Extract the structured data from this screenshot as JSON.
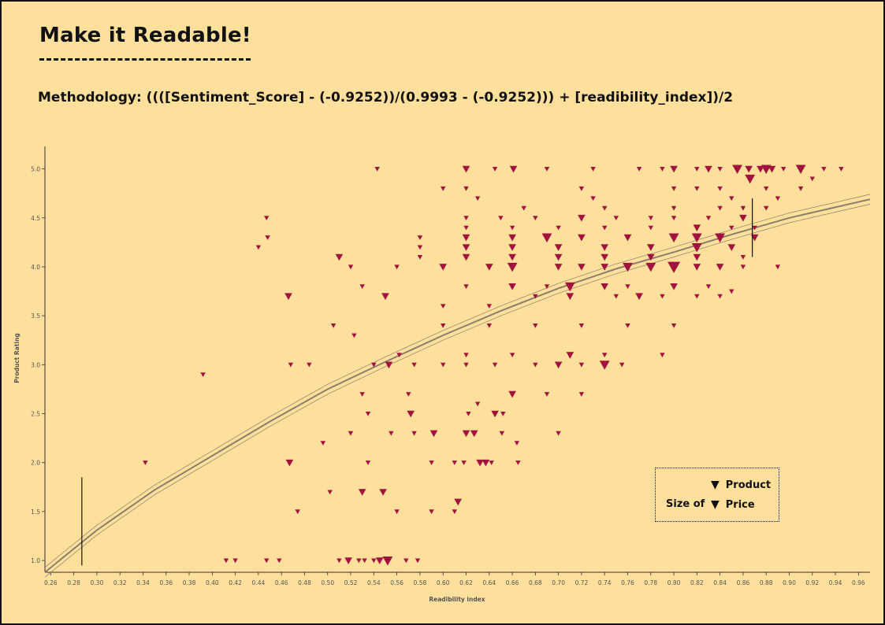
{
  "header": {
    "title": "Make it Readable!",
    "methodology": "Methodology: ((([Sentiment_Score] - (-0.9252))/(0.9993 - (-0.9252))) + [readibility_index])/2"
  },
  "legend": {
    "size_label": "Size of",
    "items": [
      "Product",
      "Price"
    ],
    "marker": "▼"
  },
  "colors": {
    "background": "#fedf9b",
    "marker": "#a3123e",
    "trend": "#8a7f6a"
  },
  "chart_data": {
    "type": "scatter",
    "xlabel": "Readibility index",
    "ylabel": "Product Rating",
    "xlim": [
      0.255,
      0.97
    ],
    "ylim": [
      0.88,
      5.23
    ],
    "xticks": [
      "0.26",
      "0.28",
      "0.30",
      "0.32",
      "0.34",
      "0.36",
      "0.38",
      "0.40",
      "0.42",
      "0.44",
      "0.46",
      "0.48",
      "0.50",
      "0.52",
      "0.54",
      "0.56",
      "0.58",
      "0.60",
      "0.62",
      "0.64",
      "0.66",
      "0.68",
      "0.70",
      "0.72",
      "0.74",
      "0.76",
      "0.78",
      "0.80",
      "0.82",
      "0.84",
      "0.86",
      "0.88",
      "0.90",
      "0.92",
      "0.94",
      "0.96"
    ],
    "yticks": [
      "1.0",
      "1.5",
      "2.0",
      "2.5",
      "3.0",
      "3.5",
      "4.0",
      "4.5",
      "5.0"
    ],
    "marker": "down-triangle",
    "trend": {
      "model": "logarithmic",
      "points": [
        [
          0.255,
          0.88
        ],
        [
          0.28,
          1.12
        ],
        [
          0.3,
          1.31
        ],
        [
          0.35,
          1.72
        ],
        [
          0.4,
          2.07
        ],
        [
          0.45,
          2.42
        ],
        [
          0.5,
          2.75
        ],
        [
          0.55,
          3.03
        ],
        [
          0.6,
          3.3
        ],
        [
          0.65,
          3.55
        ],
        [
          0.7,
          3.78
        ],
        [
          0.75,
          3.98
        ],
        [
          0.8,
          4.15
        ],
        [
          0.85,
          4.33
        ],
        [
          0.9,
          4.5
        ],
        [
          0.97,
          4.69
        ]
      ],
      "band_offset": 0.05
    },
    "reference_lines": [
      {
        "x": 0.287,
        "y_from": 0.95,
        "y_to": 1.85
      },
      {
        "x": 0.868,
        "y_from": 4.1,
        "y_to": 4.7
      }
    ],
    "points": [
      [
        0.412,
        1.0,
        1
      ],
      [
        0.42,
        1.0,
        1
      ],
      [
        0.447,
        1.0,
        1
      ],
      [
        0.458,
        1.0,
        1
      ],
      [
        0.51,
        1.0,
        1
      ],
      [
        0.518,
        1.0,
        2
      ],
      [
        0.527,
        1.0,
        1
      ],
      [
        0.532,
        1.0,
        1
      ],
      [
        0.54,
        1.0,
        1
      ],
      [
        0.545,
        1.0,
        2
      ],
      [
        0.552,
        1.0,
        3
      ],
      [
        0.568,
        1.0,
        1
      ],
      [
        0.578,
        1.0,
        1
      ],
      [
        0.342,
        2.0,
        1
      ],
      [
        0.467,
        2.0,
        2
      ],
      [
        0.53,
        1.7,
        2
      ],
      [
        0.548,
        1.7,
        2
      ],
      [
        0.56,
        1.5,
        1
      ],
      [
        0.502,
        1.7,
        1
      ],
      [
        0.474,
        1.5,
        1
      ],
      [
        0.61,
        1.5,
        1
      ],
      [
        0.613,
        1.6,
        2
      ],
      [
        0.59,
        1.5,
        1
      ],
      [
        0.496,
        2.2,
        1
      ],
      [
        0.535,
        2.0,
        1
      ],
      [
        0.59,
        2.0,
        1
      ],
      [
        0.61,
        2.0,
        1
      ],
      [
        0.618,
        2.0,
        1
      ],
      [
        0.632,
        2.0,
        2
      ],
      [
        0.637,
        2.0,
        2
      ],
      [
        0.642,
        2.0,
        1
      ],
      [
        0.665,
        2.0,
        1
      ],
      [
        0.52,
        2.3,
        1
      ],
      [
        0.555,
        2.3,
        1
      ],
      [
        0.575,
        2.3,
        1
      ],
      [
        0.592,
        2.3,
        2
      ],
      [
        0.62,
        2.3,
        2
      ],
      [
        0.627,
        2.3,
        2
      ],
      [
        0.651,
        2.3,
        1
      ],
      [
        0.664,
        2.2,
        1
      ],
      [
        0.7,
        2.3,
        1
      ],
      [
        0.535,
        2.5,
        1
      ],
      [
        0.572,
        2.5,
        2
      ],
      [
        0.622,
        2.5,
        1
      ],
      [
        0.645,
        2.5,
        2
      ],
      [
        0.652,
        2.5,
        1
      ],
      [
        0.53,
        2.7,
        1
      ],
      [
        0.57,
        2.7,
        1
      ],
      [
        0.63,
        2.6,
        1
      ],
      [
        0.66,
        2.7,
        2
      ],
      [
        0.69,
        2.7,
        1
      ],
      [
        0.72,
        2.7,
        1
      ],
      [
        0.392,
        2.9,
        1
      ],
      [
        0.468,
        3.0,
        1
      ],
      [
        0.484,
        3.0,
        1
      ],
      [
        0.54,
        3.0,
        1
      ],
      [
        0.553,
        3.0,
        2
      ],
      [
        0.575,
        3.0,
        1
      ],
      [
        0.6,
        3.0,
        1
      ],
      [
        0.62,
        3.0,
        1
      ],
      [
        0.645,
        3.0,
        1
      ],
      [
        0.68,
        3.0,
        1
      ],
      [
        0.7,
        3.0,
        2
      ],
      [
        0.72,
        3.0,
        1
      ],
      [
        0.74,
        3.0,
        3
      ],
      [
        0.755,
        3.0,
        1
      ],
      [
        0.562,
        3.1,
        1
      ],
      [
        0.62,
        3.1,
        1
      ],
      [
        0.66,
        3.1,
        1
      ],
      [
        0.71,
        3.1,
        2
      ],
      [
        0.74,
        3.1,
        1
      ],
      [
        0.79,
        3.1,
        1
      ],
      [
        0.466,
        3.7,
        2
      ],
      [
        0.505,
        3.4,
        1
      ],
      [
        0.523,
        3.3,
        1
      ],
      [
        0.6,
        3.4,
        1
      ],
      [
        0.64,
        3.4,
        1
      ],
      [
        0.68,
        3.4,
        1
      ],
      [
        0.72,
        3.4,
        1
      ],
      [
        0.76,
        3.4,
        1
      ],
      [
        0.8,
        3.4,
        1
      ],
      [
        0.55,
        3.7,
        2
      ],
      [
        0.6,
        3.6,
        1
      ],
      [
        0.64,
        3.6,
        1
      ],
      [
        0.68,
        3.7,
        1
      ],
      [
        0.71,
        3.7,
        2
      ],
      [
        0.75,
        3.7,
        1
      ],
      [
        0.77,
        3.7,
        2
      ],
      [
        0.79,
        3.7,
        1
      ],
      [
        0.82,
        3.7,
        1
      ],
      [
        0.84,
        3.7,
        1
      ],
      [
        0.53,
        3.8,
        1
      ],
      [
        0.62,
        3.8,
        1
      ],
      [
        0.66,
        3.8,
        2
      ],
      [
        0.69,
        3.8,
        1
      ],
      [
        0.71,
        3.8,
        3
      ],
      [
        0.74,
        3.8,
        2
      ],
      [
        0.76,
        3.8,
        1
      ],
      [
        0.8,
        3.8,
        2
      ],
      [
        0.83,
        3.8,
        1
      ],
      [
        0.85,
        3.75,
        1
      ],
      [
        0.52,
        4.0,
        1
      ],
      [
        0.56,
        4.0,
        1
      ],
      [
        0.6,
        4.0,
        2
      ],
      [
        0.64,
        4.0,
        2
      ],
      [
        0.66,
        4.0,
        3
      ],
      [
        0.7,
        4.0,
        2
      ],
      [
        0.72,
        4.0,
        2
      ],
      [
        0.74,
        4.0,
        2
      ],
      [
        0.76,
        4.0,
        3
      ],
      [
        0.78,
        4.0,
        3
      ],
      [
        0.8,
        4.0,
        4
      ],
      [
        0.82,
        4.0,
        2
      ],
      [
        0.84,
        4.0,
        2
      ],
      [
        0.86,
        4.0,
        1
      ],
      [
        0.89,
        4.0,
        1
      ],
      [
        0.51,
        4.1,
        2
      ],
      [
        0.58,
        4.1,
        1
      ],
      [
        0.62,
        4.1,
        2
      ],
      [
        0.66,
        4.1,
        2
      ],
      [
        0.7,
        4.1,
        2
      ],
      [
        0.74,
        4.1,
        2
      ],
      [
        0.78,
        4.1,
        2
      ],
      [
        0.82,
        4.1,
        2
      ],
      [
        0.86,
        4.1,
        1
      ],
      [
        0.44,
        4.2,
        1
      ],
      [
        0.58,
        4.2,
        1
      ],
      [
        0.62,
        4.2,
        2
      ],
      [
        0.66,
        4.2,
        2
      ],
      [
        0.7,
        4.2,
        2
      ],
      [
        0.74,
        4.2,
        2
      ],
      [
        0.78,
        4.2,
        2
      ],
      [
        0.82,
        4.2,
        3
      ],
      [
        0.85,
        4.2,
        2
      ],
      [
        0.448,
        4.3,
        1
      ],
      [
        0.58,
        4.3,
        1
      ],
      [
        0.62,
        4.3,
        2
      ],
      [
        0.66,
        4.3,
        2
      ],
      [
        0.69,
        4.3,
        3
      ],
      [
        0.72,
        4.3,
        2
      ],
      [
        0.76,
        4.3,
        2
      ],
      [
        0.8,
        4.3,
        3
      ],
      [
        0.82,
        4.3,
        3
      ],
      [
        0.84,
        4.3,
        3
      ],
      [
        0.87,
        4.3,
        2
      ],
      [
        0.62,
        4.4,
        1
      ],
      [
        0.66,
        4.4,
        1
      ],
      [
        0.7,
        4.4,
        1
      ],
      [
        0.74,
        4.4,
        1
      ],
      [
        0.78,
        4.4,
        1
      ],
      [
        0.82,
        4.4,
        2
      ],
      [
        0.85,
        4.4,
        1
      ],
      [
        0.87,
        4.4,
        1
      ],
      [
        0.447,
        4.5,
        1
      ],
      [
        0.62,
        4.5,
        1
      ],
      [
        0.65,
        4.5,
        1
      ],
      [
        0.68,
        4.5,
        1
      ],
      [
        0.72,
        4.5,
        2
      ],
      [
        0.75,
        4.5,
        1
      ],
      [
        0.78,
        4.5,
        1
      ],
      [
        0.8,
        4.5,
        1
      ],
      [
        0.83,
        4.5,
        1
      ],
      [
        0.86,
        4.5,
        2
      ],
      [
        0.67,
        4.6,
        1
      ],
      [
        0.74,
        4.6,
        1
      ],
      [
        0.8,
        4.6,
        1
      ],
      [
        0.84,
        4.6,
        1
      ],
      [
        0.86,
        4.6,
        1
      ],
      [
        0.88,
        4.6,
        1
      ],
      [
        0.6,
        4.8,
        1
      ],
      [
        0.62,
        4.8,
        1
      ],
      [
        0.72,
        4.8,
        1
      ],
      [
        0.8,
        4.8,
        1
      ],
      [
        0.82,
        4.8,
        1
      ],
      [
        0.84,
        4.8,
        1
      ],
      [
        0.88,
        4.8,
        1
      ],
      [
        0.91,
        4.8,
        1
      ],
      [
        0.63,
        4.7,
        1
      ],
      [
        0.73,
        4.7,
        1
      ],
      [
        0.85,
        4.7,
        1
      ],
      [
        0.89,
        4.7,
        1
      ],
      [
        0.866,
        4.9,
        3
      ],
      [
        0.92,
        4.9,
        1
      ],
      [
        0.543,
        5.0,
        1
      ],
      [
        0.62,
        5.0,
        2
      ],
      [
        0.645,
        5.0,
        1
      ],
      [
        0.661,
        5.0,
        2
      ],
      [
        0.69,
        5.0,
        1
      ],
      [
        0.73,
        5.0,
        1
      ],
      [
        0.77,
        5.0,
        1
      ],
      [
        0.79,
        5.0,
        1
      ],
      [
        0.8,
        5.0,
        2
      ],
      [
        0.82,
        5.0,
        1
      ],
      [
        0.83,
        5.0,
        2
      ],
      [
        0.84,
        5.0,
        1
      ],
      [
        0.855,
        5.0,
        3
      ],
      [
        0.865,
        5.0,
        2
      ],
      [
        0.875,
        5.0,
        2
      ],
      [
        0.88,
        5.0,
        3
      ],
      [
        0.885,
        5.0,
        2
      ],
      [
        0.895,
        5.0,
        1
      ],
      [
        0.91,
        5.0,
        3
      ],
      [
        0.93,
        5.0,
        1
      ],
      [
        0.945,
        5.0,
        1
      ]
    ]
  }
}
